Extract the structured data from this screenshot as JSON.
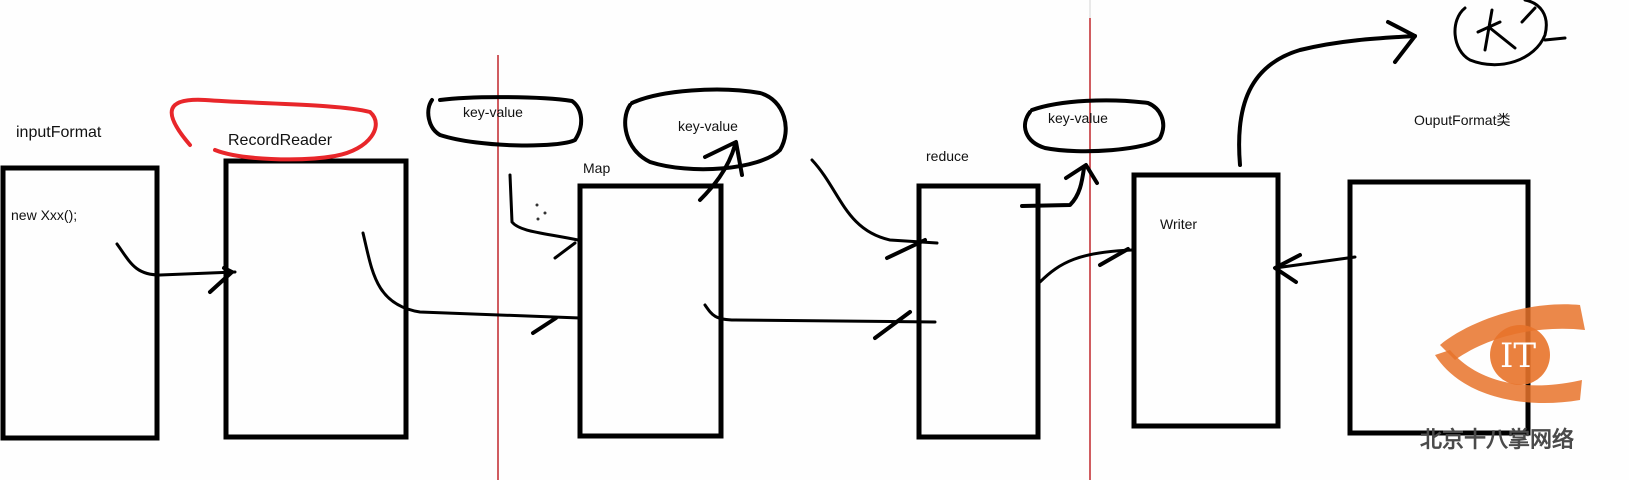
{
  "labels": {
    "input_format": "inputFormat",
    "new_xxx": "new Xxx();",
    "record_reader": "RecordReader",
    "kv_1": "key-value",
    "kv_2": "key-value",
    "map": "Map",
    "reduce": "reduce",
    "kv_3": "key-value",
    "writer": "Writer",
    "output_format": "OuputFormat类"
  },
  "watermark": {
    "logo_text": "IT",
    "org_name": "北京十八掌网络"
  },
  "colors": {
    "ink": "#000000",
    "highlight": "#e8262a",
    "divider": "#c0262c",
    "logo_orange": "#e8732a"
  }
}
